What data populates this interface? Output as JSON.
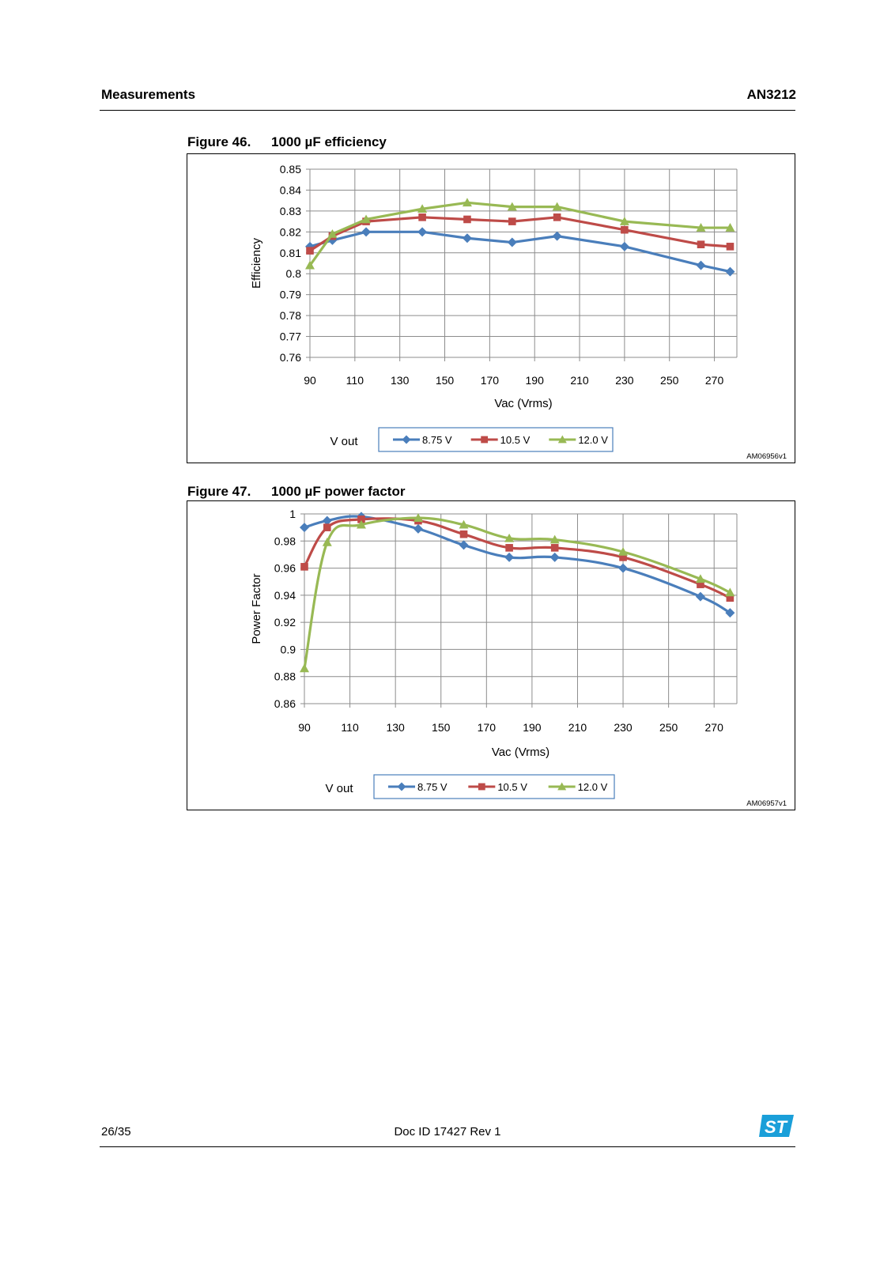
{
  "header": {
    "section": "Measurements",
    "doc_code": "AN3212"
  },
  "figures": [
    {
      "number": "Figure 46.",
      "title": "1000 µF efficiency",
      "code": "AM06956v1"
    },
    {
      "number": "Figure 47.",
      "title": "1000 µF power factor",
      "code": "AM06957v1"
    }
  ],
  "footer": {
    "page": "26/35",
    "doc_id": "Doc ID 17427 Rev 1"
  },
  "logo": {
    "icon": "st-logo-icon",
    "color": "#1a9fd9"
  },
  "chart_data": [
    {
      "type": "line",
      "xlabel": "Vac (Vrms)",
      "ylabel": "Efficiency",
      "xlim": [
        90,
        280
      ],
      "ylim": [
        0.76,
        0.85
      ],
      "x_ticks": [
        90,
        110,
        130,
        150,
        170,
        190,
        210,
        230,
        250,
        270
      ],
      "y_ticks": [
        0.85,
        0.84,
        0.83,
        0.82,
        0.81,
        0.8,
        0.79,
        0.78,
        0.77,
        0.76
      ],
      "smooth": false,
      "grid": true,
      "legend": {
        "title": "V out",
        "position": "bottom"
      },
      "x": [
        90,
        100,
        115,
        140,
        160,
        180,
        200,
        230,
        264,
        277
      ],
      "series": [
        {
          "name": "8.75 V",
          "color": "#4a7ebb",
          "marker": "diamond",
          "values": [
            0.813,
            0.816,
            0.82,
            0.82,
            0.817,
            0.815,
            0.818,
            0.813,
            0.804,
            0.801
          ]
        },
        {
          "name": "10.5 V",
          "color": "#be4b48",
          "marker": "square",
          "values": [
            0.811,
            0.818,
            0.825,
            0.827,
            0.826,
            0.825,
            0.827,
            0.821,
            0.814,
            0.813
          ]
        },
        {
          "name": "12.0 V",
          "color": "#98b954",
          "marker": "triangle",
          "values": [
            0.804,
            0.819,
            0.826,
            0.831,
            0.834,
            0.832,
            0.832,
            0.825,
            0.822,
            0.822
          ]
        }
      ]
    },
    {
      "type": "line",
      "xlabel": "Vac (Vrms)",
      "ylabel": "Power Factor",
      "xlim": [
        90,
        280
      ],
      "ylim": [
        0.86,
        1
      ],
      "x_ticks": [
        90,
        110,
        130,
        150,
        170,
        190,
        210,
        230,
        250,
        270
      ],
      "y_ticks": [
        1,
        0.98,
        0.96,
        0.94,
        0.92,
        0.9,
        0.88,
        0.86
      ],
      "smooth": true,
      "grid": true,
      "legend": {
        "title": "V out",
        "position": "bottom"
      },
      "x": [
        90,
        100,
        115,
        140,
        160,
        180,
        200,
        230,
        264,
        277
      ],
      "series": [
        {
          "name": "8.75 V",
          "color": "#4a7ebb",
          "marker": "diamond",
          "values": [
            0.99,
            0.995,
            0.998,
            0.989,
            0.977,
            0.968,
            0.968,
            0.96,
            0.939,
            0.927
          ]
        },
        {
          "name": "10.5 V",
          "color": "#be4b48",
          "marker": "square",
          "values": [
            0.961,
            0.99,
            0.996,
            0.995,
            0.985,
            0.975,
            0.975,
            0.968,
            0.948,
            0.938
          ]
        },
        {
          "name": "12.0 V",
          "color": "#98b954",
          "marker": "triangle",
          "values": [
            0.886,
            0.979,
            0.992,
            0.997,
            0.992,
            0.982,
            0.981,
            0.972,
            0.952,
            0.942
          ]
        }
      ]
    }
  ]
}
